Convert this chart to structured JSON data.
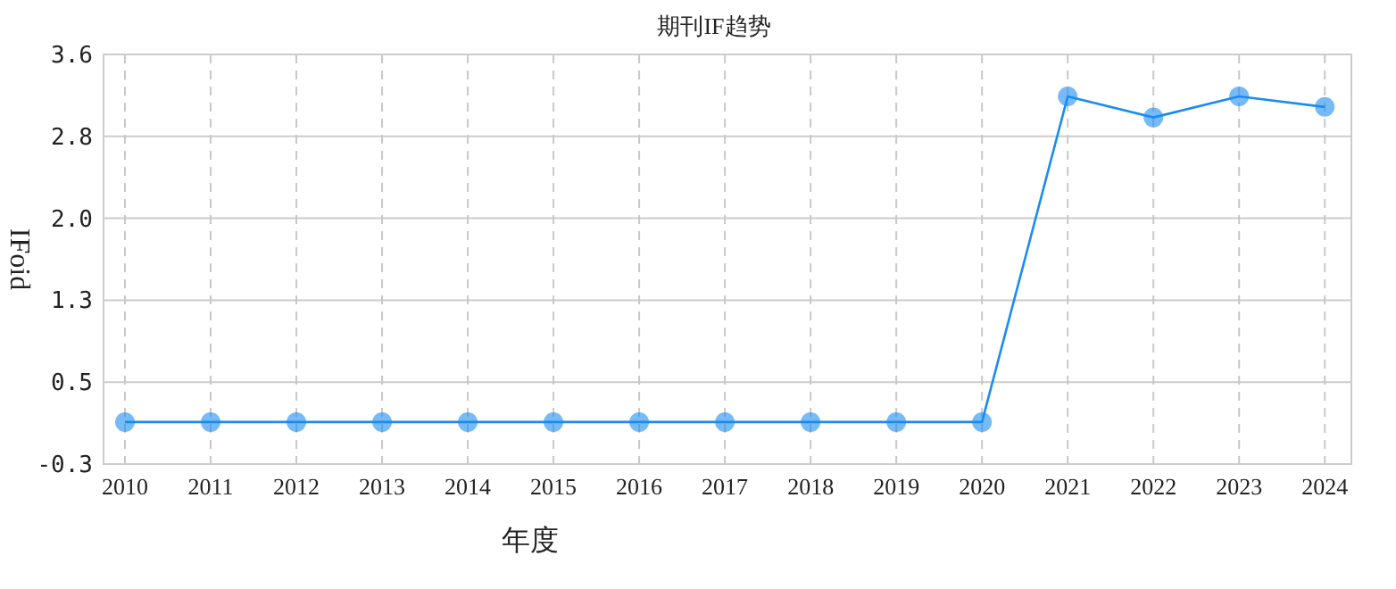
{
  "chart_data": {
    "type": "line",
    "title": "期刊IF趋势",
    "xlabel": "年度",
    "ylabel": "IFoid",
    "categories": [
      "2010",
      "2011",
      "2012",
      "2013",
      "2014",
      "2015",
      "2016",
      "2017",
      "2018",
      "2019",
      "2020",
      "2021",
      "2022",
      "2023",
      "2024"
    ],
    "series": [
      {
        "color": "#1a8cf0",
        "values": [
          0.1,
          0.1,
          0.1,
          0.1,
          0.1,
          0.1,
          0.1,
          0.1,
          0.1,
          0.1,
          0.1,
          3.2,
          3.0,
          3.2,
          3.1
        ]
      }
    ],
    "ylim": [
      -0.3,
      3.6
    ],
    "yticks": [
      -0.3,
      {
        "value": 0.48,
        "label": "0.5"
      },
      {
        "value": 1.26,
        "label": "1.3"
      },
      {
        "value": 2.04,
        "label": "2.0"
      },
      {
        "value": 2.82,
        "label": "2.8"
      },
      3.6
    ],
    "grid": true,
    "marker": "circle",
    "line_style": "solid"
  }
}
